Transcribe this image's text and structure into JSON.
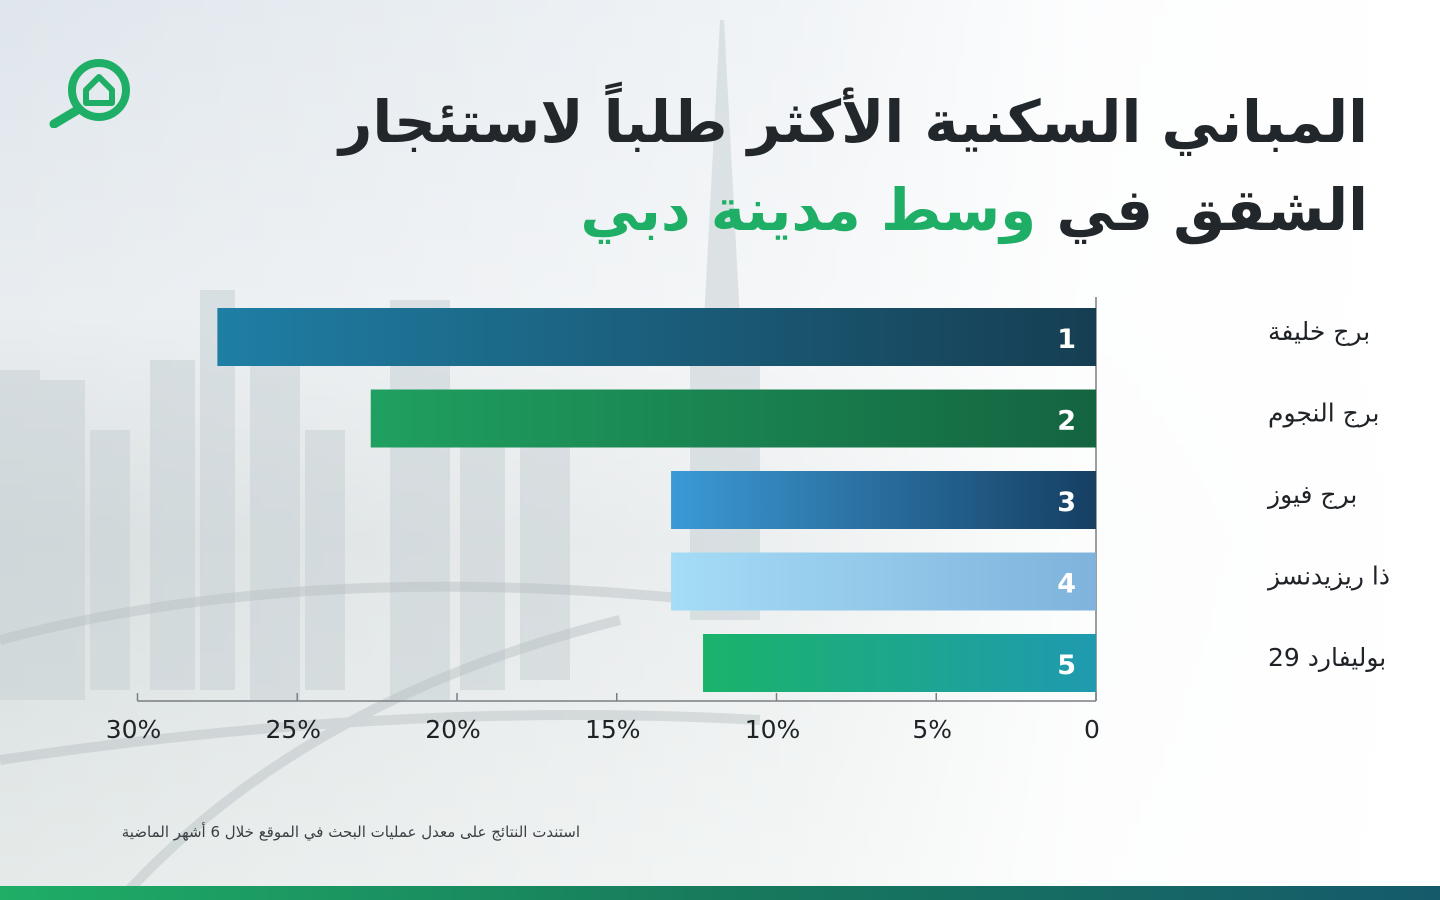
{
  "title": {
    "line1": "المباني السكنية الأكثر طلباً لاستئجار",
    "line2_prefix": "الشقق في",
    "line2_accent": "وسط مدينة دبي"
  },
  "logo_icon": "house-search-icon",
  "colors": {
    "accent": "#1fae66",
    "title": "#22272b",
    "bar1": [
      "#1f7ea4",
      "#163e52"
    ],
    "bar2": [
      "#1fa060",
      "#146440"
    ],
    "bar3": [
      "#3b9ad6",
      "#163f63"
    ],
    "bar4": [
      "#a5dcf6",
      "#7fb3dc"
    ],
    "bar5": [
      "#1ab36a",
      "#1f9ab0"
    ]
  },
  "chart_data": {
    "type": "bar",
    "orientation": "horizontal",
    "x_direction": "right-to-left",
    "categories": [
      "برج خليفة",
      "برج النجوم",
      "برج فيوز",
      "ذا ريزيدنسز",
      "بوليفارد 29"
    ],
    "rank_labels": [
      "1",
      "2",
      "3",
      "4",
      "5"
    ],
    "values": [
      27.5,
      22.7,
      13.3,
      13.3,
      12.3
    ],
    "xlim": [
      0,
      30
    ],
    "x_ticks": [
      0,
      5,
      10,
      15,
      20,
      25,
      30
    ],
    "x_tick_labels": [
      "0",
      "5%",
      "10%",
      "15%",
      "20%",
      "25%",
      "30%"
    ],
    "grid": false
  },
  "footnote": "استندت النتائج على معدل عمليات البحث في الموقع خلال 6 أشهر الماضية"
}
